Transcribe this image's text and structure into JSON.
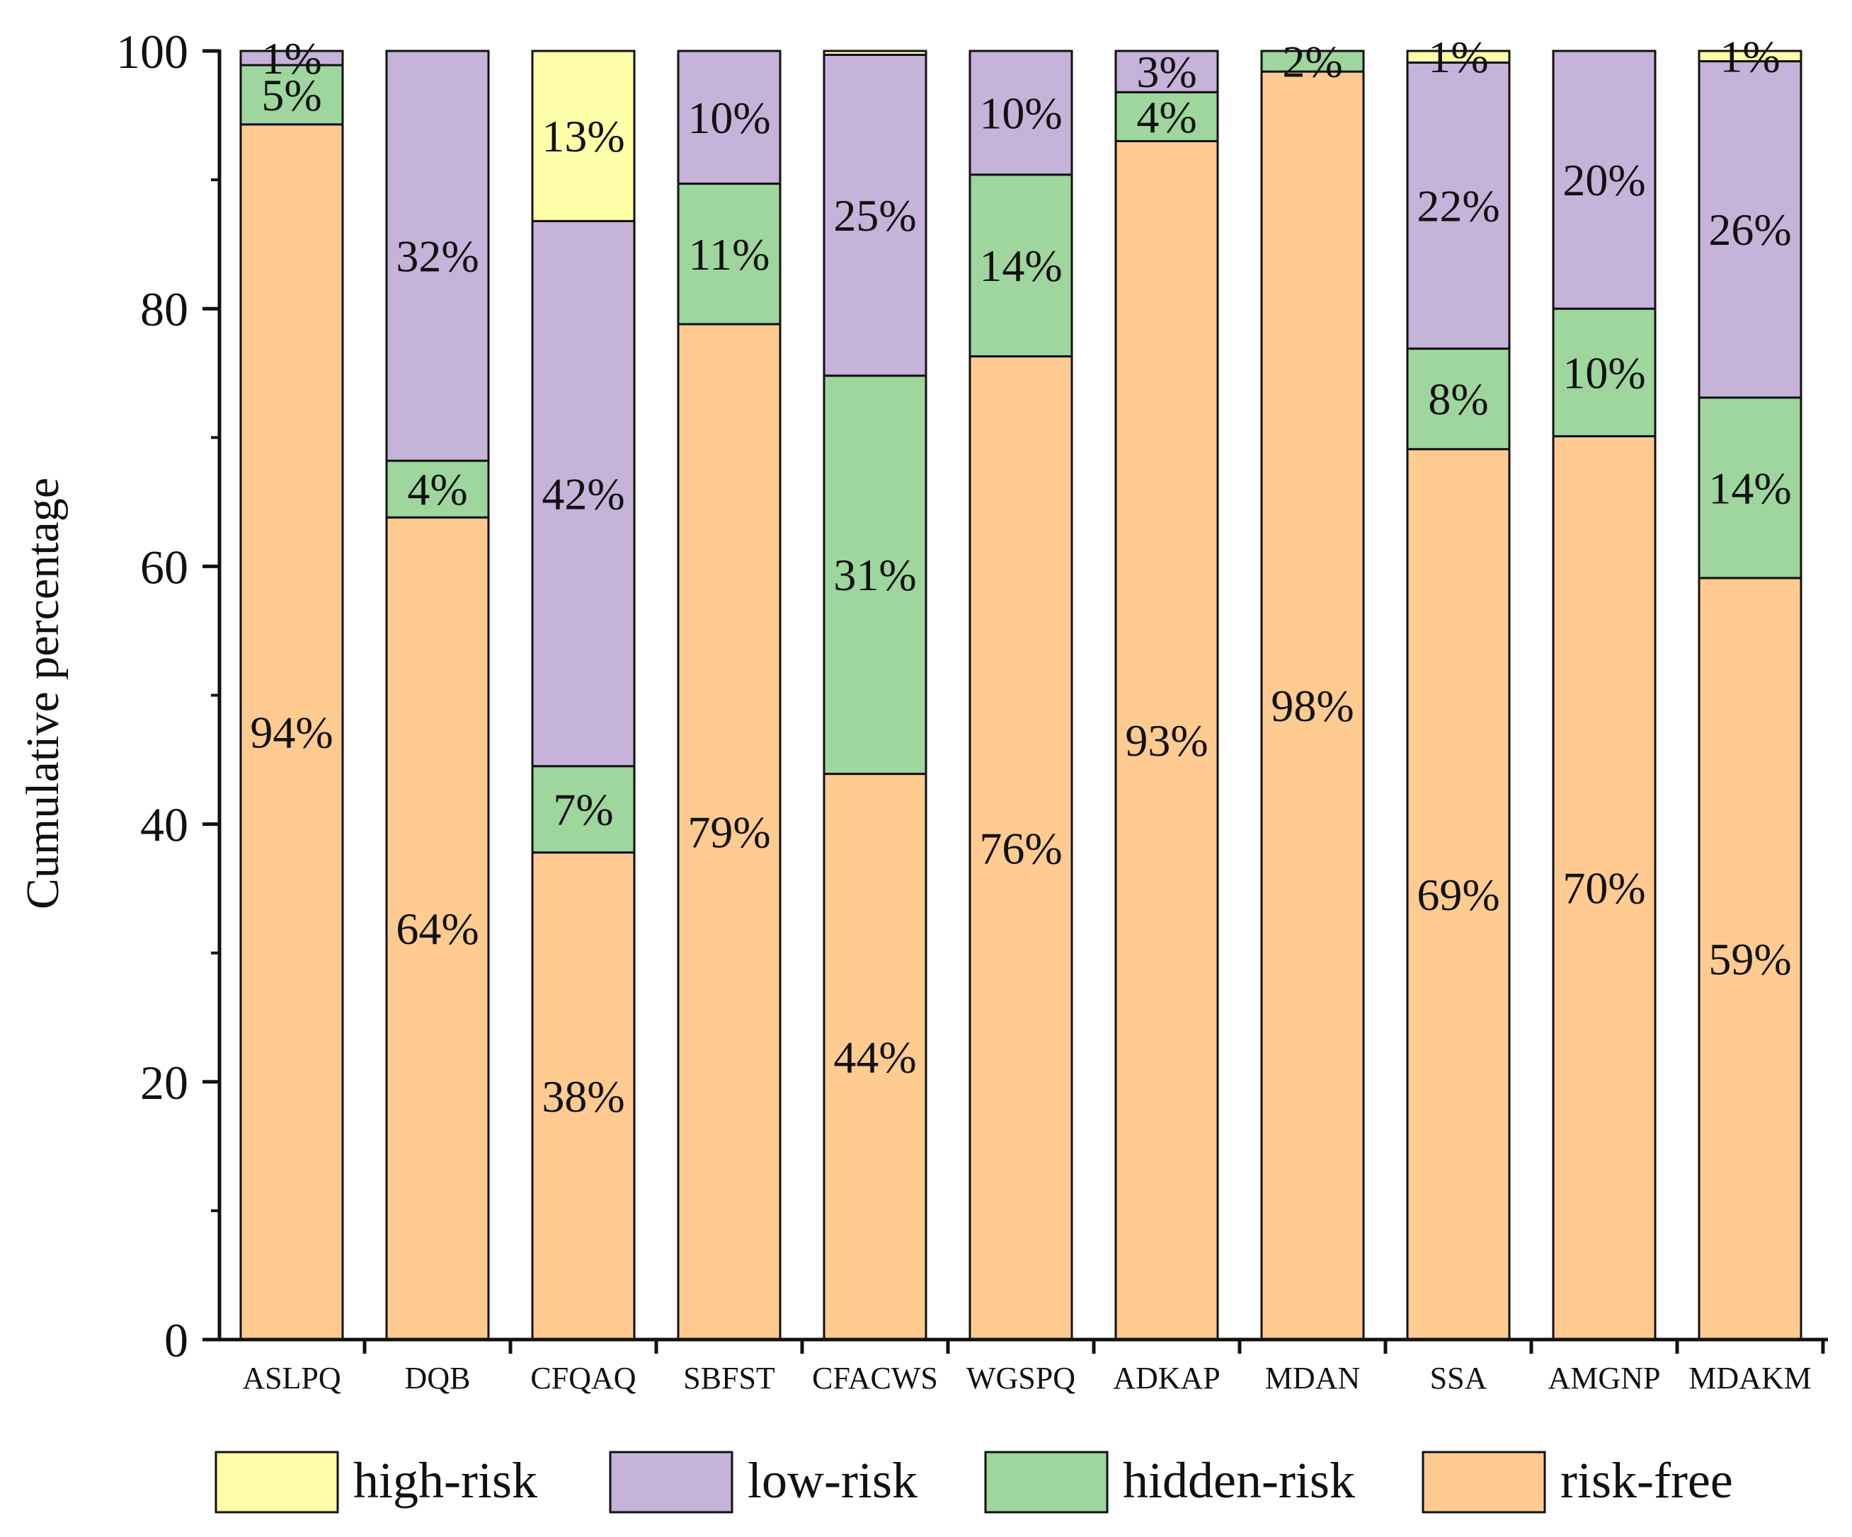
{
  "chart_data": {
    "type": "bar",
    "stacked": true,
    "title": "",
    "xlabel": "",
    "ylabel": "Cumulative percentage",
    "ylim": [
      0,
      100
    ],
    "yticks": [
      0,
      20,
      40,
      60,
      80,
      100
    ],
    "grid": false,
    "legend_position": "bottom",
    "categories": [
      "ASLPQ",
      "DQB",
      "CFQAQ",
      "SBFST",
      "CFACWS",
      "WGSPQ",
      "ADKAP",
      "MDAN",
      "SSA",
      "AMGNP",
      "MDAKM"
    ],
    "series": [
      {
        "name": "risk-free",
        "color": "#FFCB91",
        "values": [
          94.3,
          63.8,
          37.8,
          78.8,
          43.9,
          76.3,
          93.0,
          98.4,
          69.1,
          70.1,
          59.1
        ],
        "labels": [
          "94%",
          "64%",
          "38%",
          "79%",
          "44%",
          "76%",
          "93%",
          "98%",
          "69%",
          "70%",
          "59%"
        ]
      },
      {
        "name": "hidden-risk",
        "color": "#9ED69D",
        "values": [
          4.6,
          4.4,
          6.7,
          10.9,
          30.9,
          14.1,
          3.8,
          1.6,
          7.8,
          9.9,
          14.0
        ],
        "labels": [
          "5%",
          "4%",
          "7%",
          "11%",
          "31%",
          "14%",
          "4%",
          "2%",
          "8%",
          "10%",
          "14%"
        ]
      },
      {
        "name": "low-risk",
        "color": "#C5B3D9",
        "values": [
          1.1,
          31.8,
          42.3,
          10.3,
          24.9,
          9.6,
          3.2,
          0.0,
          22.2,
          20.0,
          26.1
        ],
        "labels": [
          "1%",
          "32%",
          "42%",
          "10%",
          "25%",
          "10%",
          "3%",
          "",
          "22%",
          "20%",
          "26%"
        ]
      },
      {
        "name": "high-risk",
        "color": "#FFFFAA",
        "values": [
          0.0,
          0.0,
          13.2,
          0.0,
          0.3,
          0.0,
          0.0,
          0.0,
          0.9,
          0.0,
          0.8
        ],
        "labels": [
          "",
          "",
          "13%",
          "",
          "",
          "",
          "",
          "",
          "1%",
          "",
          "1%"
        ]
      }
    ],
    "legend": [
      "high-risk",
      "low-risk",
      "hidden-risk",
      "risk-free"
    ]
  }
}
